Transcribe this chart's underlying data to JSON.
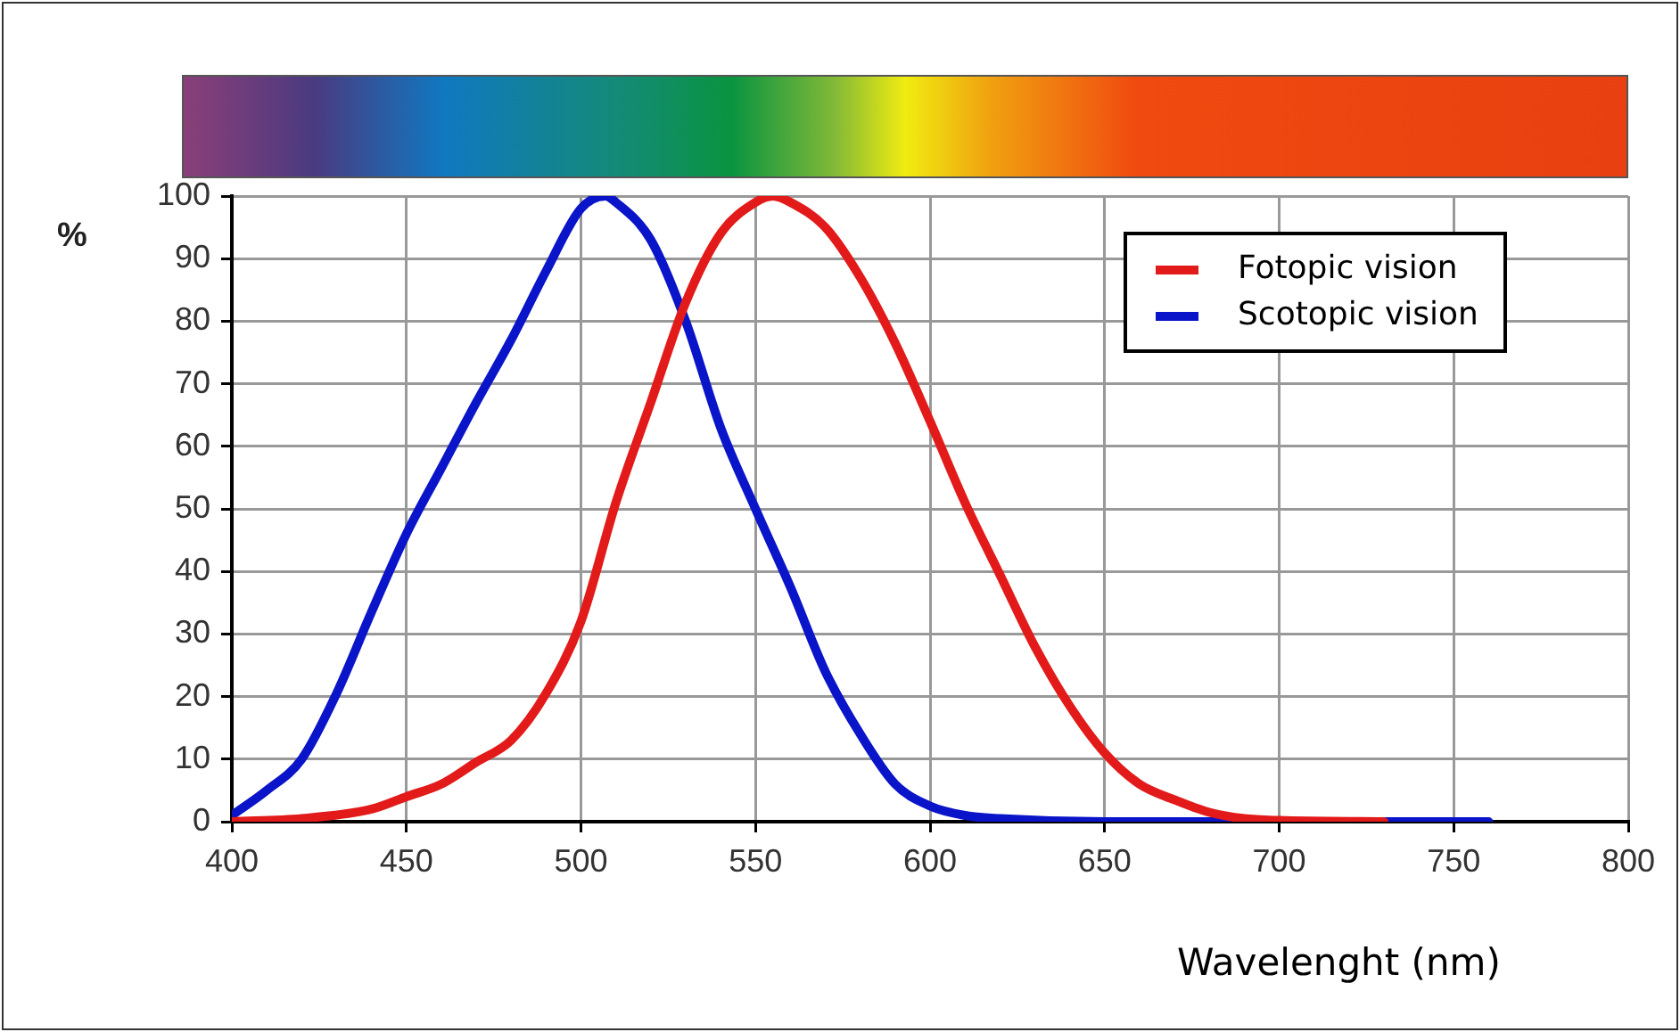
{
  "chart_data": {
    "type": "line",
    "ylabel": "%",
    "xlabel": "Wavelenght (nm)",
    "xlim": [
      400,
      800
    ],
    "xticks": [
      400,
      450,
      500,
      550,
      600,
      650,
      700,
      750,
      800
    ],
    "ylim": [
      0,
      100
    ],
    "yticks": [
      0,
      10,
      20,
      30,
      40,
      50,
      60,
      70,
      80,
      90,
      100
    ],
    "grid": true,
    "legend": "top right",
    "marker": "none",
    "line_style": "solid",
    "series": [
      {
        "name": "Fotopic vision",
        "color": "#e31a1a",
        "x": [
          400,
          420,
          440,
          450,
          460,
          470,
          480,
          490,
          500,
          510,
          520,
          530,
          540,
          550,
          555,
          560,
          570,
          580,
          590,
          600,
          610,
          620,
          630,
          640,
          650,
          660,
          670,
          680,
          690,
          700,
          730
        ],
        "values": [
          0,
          0.5,
          2,
          4,
          6,
          9.5,
          13,
          20.5,
          32,
          51,
          67,
          83,
          94,
          99,
          100,
          99,
          95,
          87,
          76.5,
          64,
          51,
          39.5,
          28,
          18.5,
          11,
          6,
          3.5,
          1.5,
          0.5,
          0.2,
          0
        ]
      },
      {
        "name": "Scotopic vision",
        "color": "#0a14c8",
        "x": [
          400,
          410,
          420,
          430,
          440,
          450,
          460,
          470,
          480,
          490,
          500,
          507,
          510,
          520,
          530,
          540,
          550,
          560,
          570,
          580,
          590,
          600,
          610,
          620,
          650,
          700,
          760
        ],
        "values": [
          1,
          5,
          10,
          20.5,
          33.5,
          46,
          56.5,
          67,
          77,
          88,
          98,
          100,
          99,
          93,
          80,
          63,
          50,
          37.5,
          24,
          14,
          6,
          2.5,
          1,
          0.5,
          0,
          0,
          0
        ]
      }
    ]
  }
}
